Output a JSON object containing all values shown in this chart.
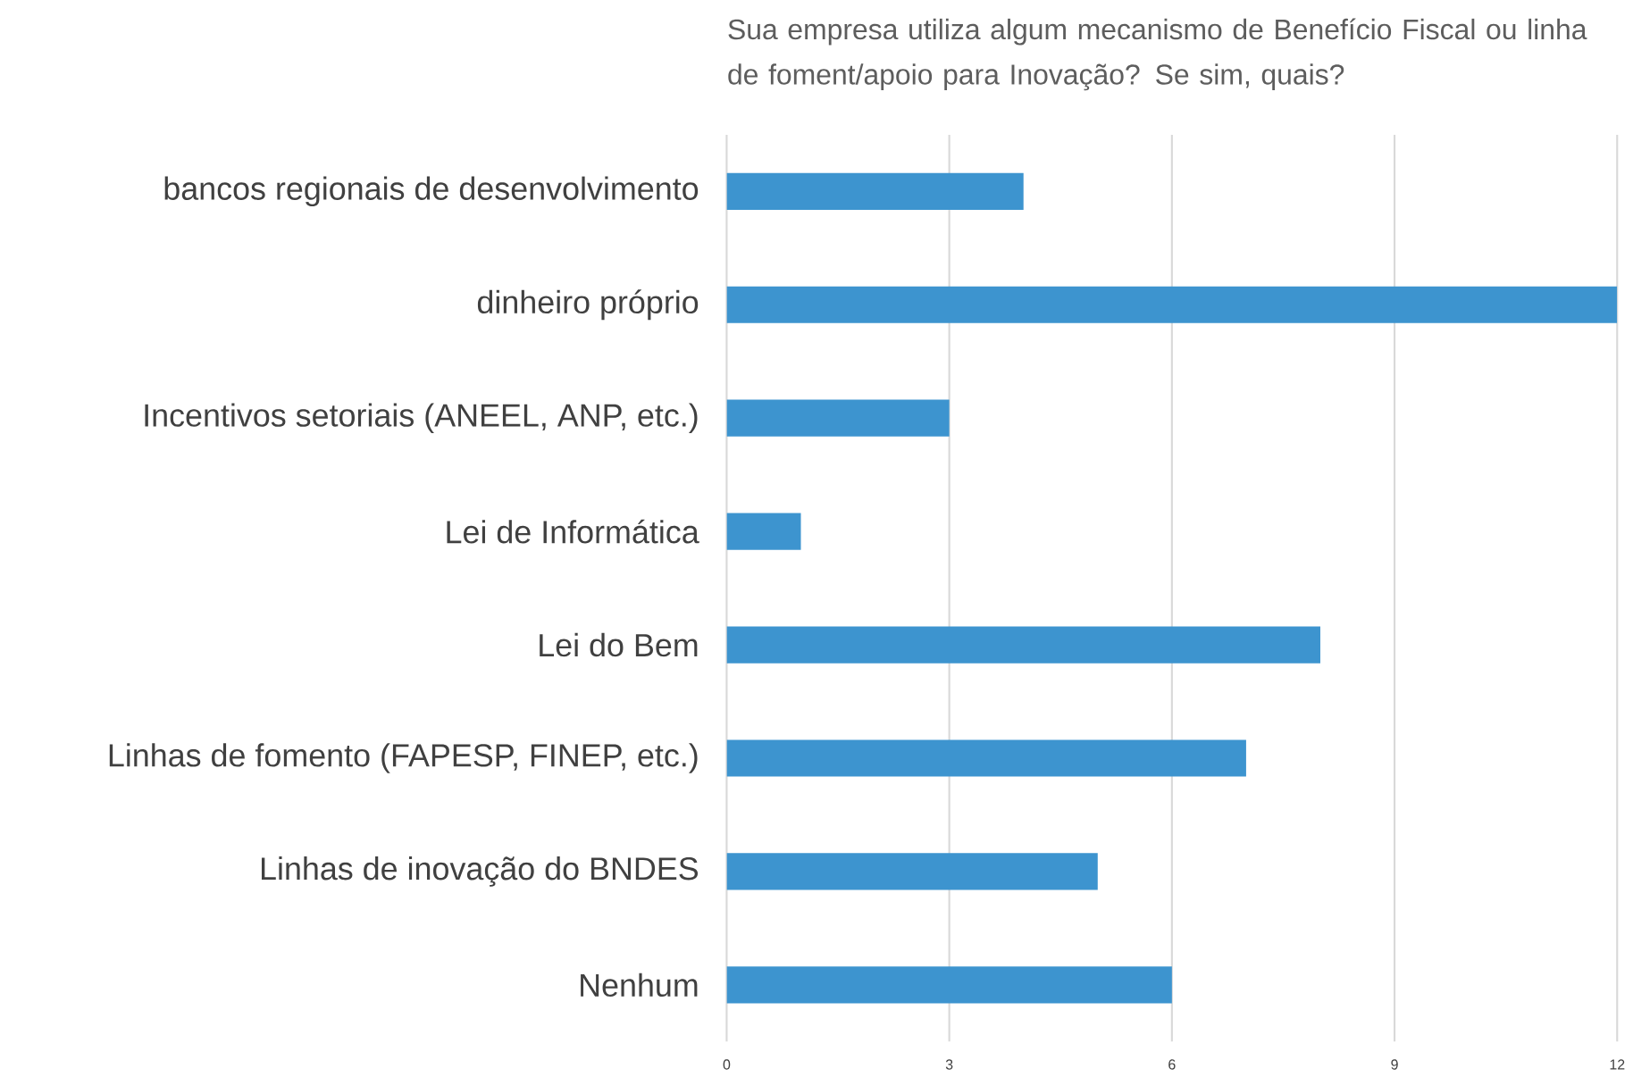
{
  "chart_data": {
    "type": "bar",
    "orientation": "horizontal",
    "title": "Sua empresa utiliza algum mecanismo de Benefício Fiscal ou linha de foment/apoio para Inovação? Se sim, quais?",
    "categories": [
      "bancos regionais de desenvolvimento",
      "dinheiro próprio",
      "Incentivos setoriais (ANEEL, ANP, etc.)",
      "Lei de Informática",
      "Lei do Bem",
      "Linhas de fomento (FAPESP, FINEP, etc.)",
      "Linhas de inovação do BNDES",
      "Nenhum"
    ],
    "values": [
      4,
      12,
      3,
      1,
      8,
      7,
      5,
      6
    ],
    "color": "#3d94cf",
    "xlim": [
      0,
      12
    ],
    "xticks": [
      0,
      3,
      6,
      9,
      12
    ],
    "grid": "x"
  }
}
